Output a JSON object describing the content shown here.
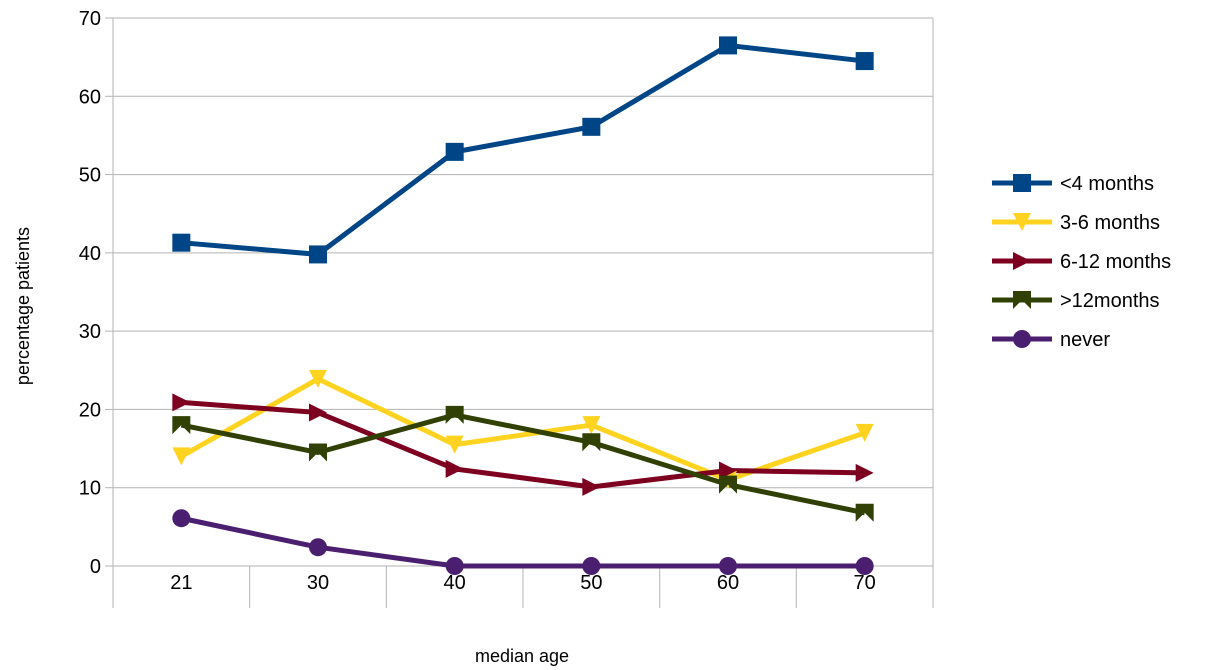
{
  "chart_data": {
    "type": "line",
    "categories": [
      "21",
      "30",
      "40",
      "50",
      "60",
      "70"
    ],
    "xlabel": "median age",
    "ylabel": "percentage patients",
    "ylim": [
      0,
      70
    ],
    "yticks": [
      0,
      10,
      20,
      30,
      40,
      50,
      60,
      70
    ],
    "grid": true,
    "legend_position": "right",
    "series": [
      {
        "name": "<4 months",
        "values": [
          41.3,
          39.8,
          52.9,
          56.1,
          66.5,
          64.5
        ],
        "color": "#004586",
        "marker": "square"
      },
      {
        "name": "3-6 months",
        "values": [
          14.0,
          23.9,
          15.5,
          18.0,
          11.0,
          17.0
        ],
        "color": "#ffd320",
        "marker": "triangle-down"
      },
      {
        "name": "6-12 months",
        "values": [
          20.9,
          19.6,
          12.4,
          10.1,
          12.2,
          11.9
        ],
        "color": "#7e0021",
        "marker": "triangle-right"
      },
      {
        "name": ">12months",
        "values": [
          18.0,
          14.5,
          19.3,
          15.8,
          10.4,
          6.8
        ],
        "color": "#314004",
        "marker": "bowtie"
      },
      {
        "name": "never",
        "values": [
          6.1,
          2.4,
          0,
          0,
          0,
          0
        ],
        "color": "#4b1f6f",
        "marker": "circle"
      }
    ]
  }
}
